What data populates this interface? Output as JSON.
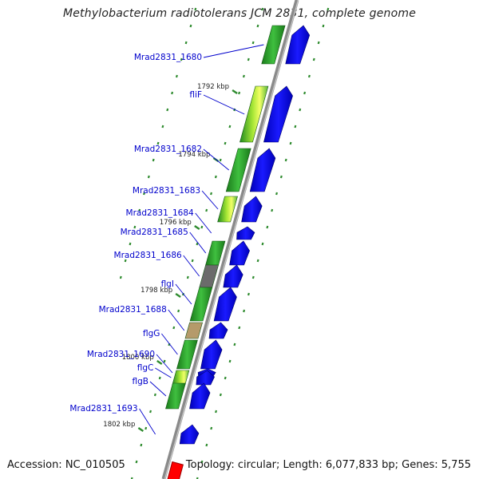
{
  "title": "Methylobacterium radiotolerans JCM 2831, complete genome",
  "footer": {
    "accession": "Accession: NC_010505",
    "summary": "Topology: circular; Length: 6,077,833 bp; Genes: 5,755"
  },
  "colors": {
    "gene_label": "#0000cc",
    "leader_line": "#0000cc",
    "cds_arrow": "#0000ee",
    "backbone": "#888888",
    "scale_text": "#222222",
    "tick": "#2e8b2e",
    "highlight": "#ff0000"
  },
  "scale_labels": [
    "1792 kbp",
    "1794 kbp",
    "1796 kbp",
    "1798 kbp",
    "1800 kbp",
    "1802 kbp"
  ],
  "genes": [
    {
      "name": "Mrad2831_1680",
      "shaded": "green"
    },
    {
      "name": "fliF",
      "shaded": "lime"
    },
    {
      "name": "Mrad2831_1682",
      "shaded": "green"
    },
    {
      "name": "Mrad2831_1683",
      "shaded": "lime"
    },
    {
      "name": "Mrad2831_1684",
      "shaded": "none"
    },
    {
      "name": "Mrad2831_1685",
      "shaded": "green"
    },
    {
      "name": "Mrad2831_1686",
      "shaded": "gray"
    },
    {
      "name": "flgI",
      "shaded": "green"
    },
    {
      "name": "Mrad2831_1688",
      "shaded": "tan"
    },
    {
      "name": "flgG",
      "shaded": "green"
    },
    {
      "name": "Mrad2831_1690",
      "shaded": "none"
    },
    {
      "name": "flgC",
      "shaded": "lime"
    },
    {
      "name": "flgB",
      "shaded": "green"
    },
    {
      "name": "Mrad2831_1693",
      "shaded": "none"
    }
  ]
}
